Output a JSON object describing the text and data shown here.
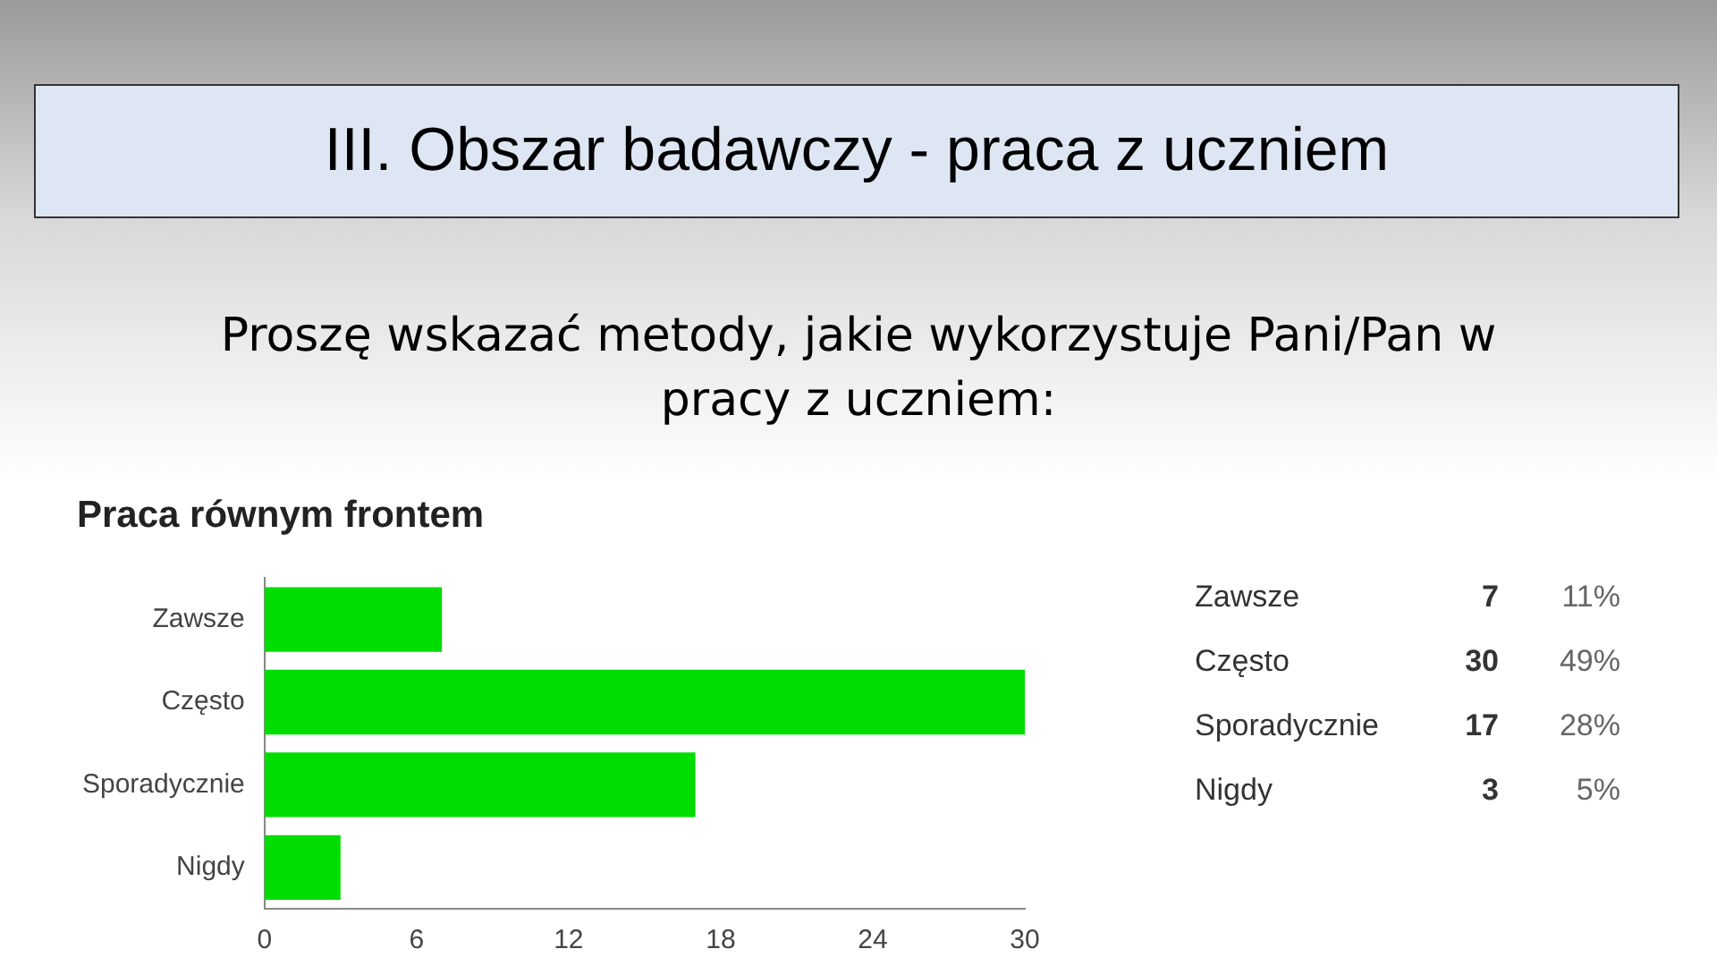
{
  "chart_data": [
    {
      "type": "bar",
      "orientation": "horizontal",
      "title": "III. Obszar badawczy - praca z uczniem",
      "subtitle": "Proszę wskazać metody, jakie wykorzystuje Pani/Pan w pracy z uczniem:",
      "annotations": [
        "Praca równym frontem"
      ],
      "categories": [
        "Zawsze",
        "Często",
        "Sporadycznie",
        "Nigdy"
      ],
      "values": [
        7,
        30,
        17,
        3
      ],
      "color": "#00dd00",
      "xlim": [
        0,
        30
      ],
      "xticks": [
        0,
        6,
        12,
        18,
        24,
        30
      ],
      "grid": false,
      "legend": false
    },
    {
      "type": "other",
      "annotations": [
        "Zawsze",
        "7",
        "11%",
        "Często",
        "30",
        "49%",
        "Sporadycznie",
        "17",
        "28%",
        "Nigdy",
        "3",
        "5%"
      ]
    }
  ]
}
